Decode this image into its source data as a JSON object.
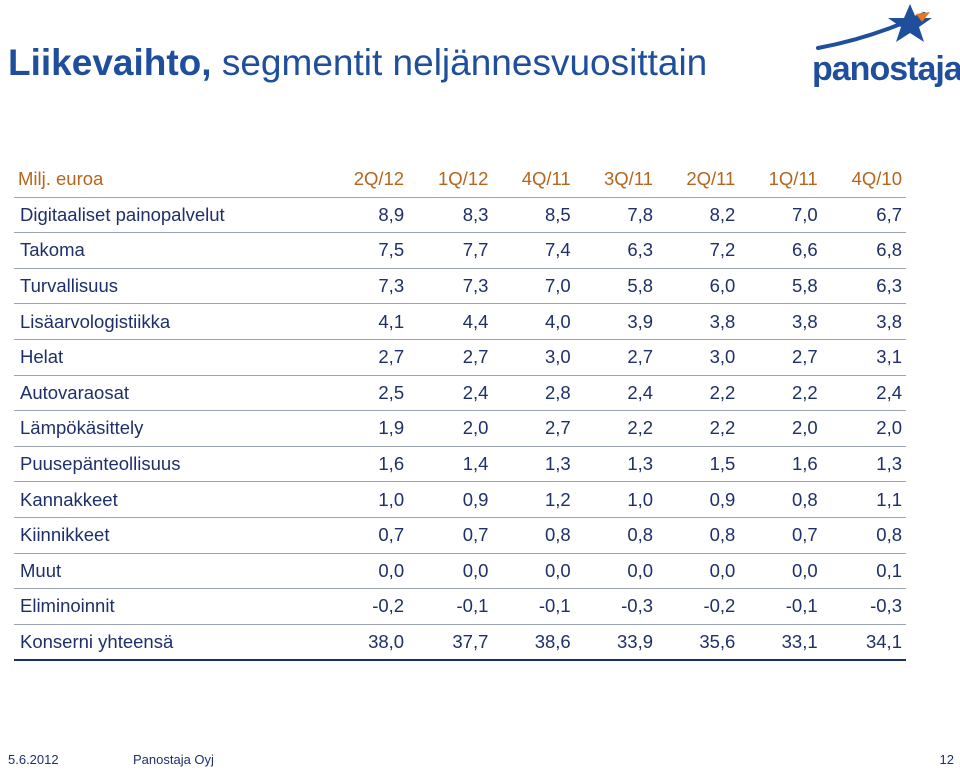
{
  "title": {
    "bold": "Liikevaihto,",
    "rest": " segmentit neljännesvuosittain"
  },
  "logo": {
    "text": "panostaja",
    "color": "#1f4e9c",
    "accent": "#e87722"
  },
  "table": {
    "unit_label": "Milj. euroa",
    "columns": [
      "2Q/12",
      "1Q/12",
      "4Q/11",
      "3Q/11",
      "2Q/11",
      "1Q/11",
      "4Q/10"
    ],
    "rows": [
      {
        "label": "Digitaaliset painopalvelut",
        "values": [
          "8,9",
          "8,3",
          "8,5",
          "7,8",
          "8,2",
          "7,0",
          "6,7"
        ]
      },
      {
        "label": "Takoma",
        "values": [
          "7,5",
          "7,7",
          "7,4",
          "6,3",
          "7,2",
          "6,6",
          "6,8"
        ]
      },
      {
        "label": "Turvallisuus",
        "values": [
          "7,3",
          "7,3",
          "7,0",
          "5,8",
          "6,0",
          "5,8",
          "6,3"
        ]
      },
      {
        "label": "Lisäarvologistiikka",
        "values": [
          "4,1",
          "4,4",
          "4,0",
          "3,9",
          "3,8",
          "3,8",
          "3,8"
        ]
      },
      {
        "label": "Helat",
        "values": [
          "2,7",
          "2,7",
          "3,0",
          "2,7",
          "3,0",
          "2,7",
          "3,1"
        ]
      },
      {
        "label": "Autovaraosat",
        "values": [
          "2,5",
          "2,4",
          "2,8",
          "2,4",
          "2,2",
          "2,2",
          "2,4"
        ]
      },
      {
        "label": "Lämpökäsittely",
        "values": [
          "1,9",
          "2,0",
          "2,7",
          "2,2",
          "2,2",
          "2,0",
          "2,0"
        ]
      },
      {
        "label": "Puusepänteollisuus",
        "values": [
          "1,6",
          "1,4",
          "1,3",
          "1,3",
          "1,5",
          "1,6",
          "1,3"
        ]
      },
      {
        "label": "Kannakkeet",
        "values": [
          "1,0",
          "0,9",
          "1,2",
          "1,0",
          "0,9",
          "0,8",
          "1,1"
        ]
      },
      {
        "label": "Kiinnikkeet",
        "values": [
          "0,7",
          "0,7",
          "0,8",
          "0,8",
          "0,8",
          "0,7",
          "0,8"
        ]
      },
      {
        "label": "Muut",
        "values": [
          "0,0",
          "0,0",
          "0,0",
          "0,0",
          "0,0",
          "0,0",
          "0,1"
        ]
      },
      {
        "label": "Eliminoinnit",
        "values": [
          "-0,2",
          "-0,1",
          "-0,1",
          "-0,3",
          "-0,2",
          "-0,1",
          "-0,3"
        ]
      }
    ],
    "total": {
      "label": "Konserni  yhteensä",
      "values": [
        "38,0",
        "37,7",
        "38,6",
        "33,9",
        "35,6",
        "33,1",
        "34,1"
      ]
    }
  },
  "footer": {
    "date": "5.6.2012",
    "company": "Panostaja Oyj",
    "page": "12"
  }
}
